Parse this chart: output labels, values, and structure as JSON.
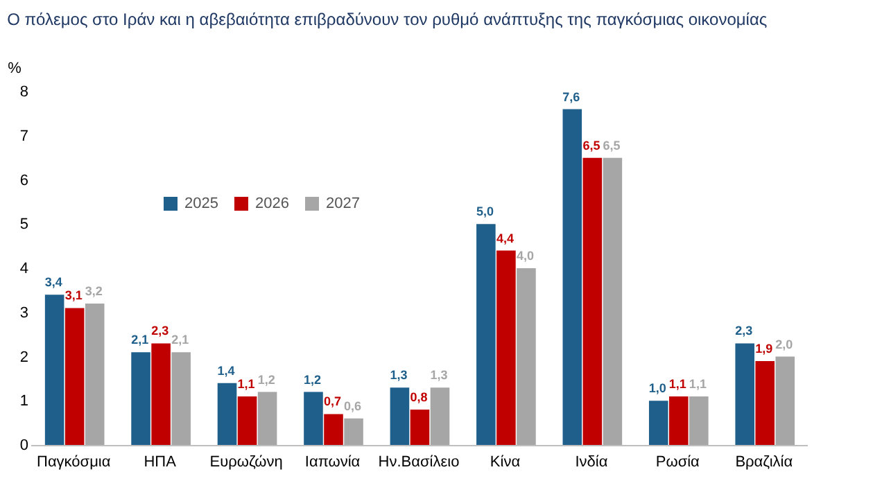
{
  "chart_data": {
    "type": "bar",
    "title": "Ο πόλεμος στο Ιράν και η αβεβαιότητα επιβραδύνουν τον ρυθμό ανάπτυξης της παγκόσμιας οικονομίας",
    "ylabel": "%",
    "categories": [
      "Παγκόσμια",
      "ΗΠΑ",
      "Ευρωζώνη",
      "Ιαπωνία",
      "Ην.Βασίλειο",
      "Κίνα",
      "Ινδία",
      "Ρωσία",
      "Βραζιλία"
    ],
    "series": [
      {
        "name": "2025",
        "color": "#1f5f8b",
        "values": [
          3.4,
          2.1,
          1.4,
          1.2,
          1.3,
          5.0,
          7.6,
          1.0,
          2.3
        ],
        "value_labels": [
          "3,4",
          "2,1",
          "1,4",
          "1,2",
          "1,3",
          "5,0",
          "7,6",
          "1,0",
          "2,3"
        ]
      },
      {
        "name": "2026",
        "color": "#c00000",
        "values": [
          3.1,
          2.3,
          1.1,
          0.7,
          0.8,
          4.4,
          6.5,
          1.1,
          1.9
        ],
        "value_labels": [
          "3,1",
          "2,3",
          "1,1",
          "0,7",
          "0,8",
          "4,4",
          "6,5",
          "1,1",
          "1,9"
        ]
      },
      {
        "name": "2027",
        "color": "#a6a6a6",
        "values": [
          3.2,
          2.1,
          1.2,
          0.6,
          1.3,
          4.0,
          6.5,
          1.1,
          2.0
        ],
        "value_labels": [
          "3,2",
          "2,1",
          "1,2",
          "0,6",
          "1,3",
          "4,0",
          "6,5",
          "1,1",
          "2,0"
        ]
      }
    ],
    "ylim": [
      0,
      8
    ],
    "yticks": [
      0,
      1,
      2,
      3,
      4,
      5,
      6,
      7,
      8
    ],
    "grid": false,
    "legend": "top left"
  }
}
